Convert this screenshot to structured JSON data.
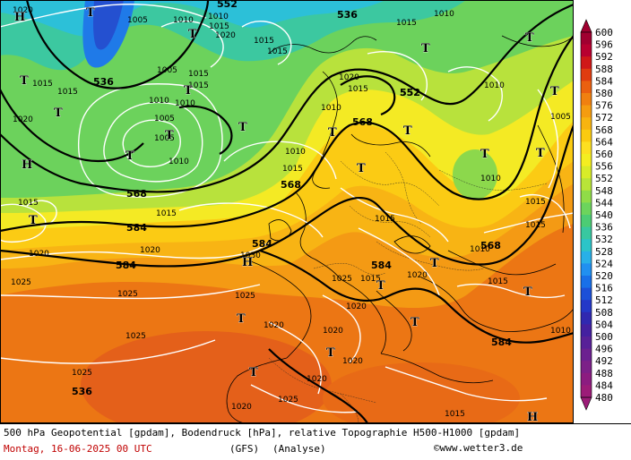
{
  "map": {
    "geopotential_labels": [
      "536",
      "552",
      "568",
      "584",
      "552",
      "536",
      "552",
      "568",
      "568",
      "584",
      "584",
      "568",
      "584",
      "584"
    ],
    "pressure_labels": [
      "1020",
      "1005",
      "1010",
      "1015",
      "1020",
      "1010",
      "1015",
      "1015",
      "1015",
      "1020",
      "1005",
      "1010",
      "1010",
      "1005",
      "1005",
      "1010",
      "1010",
      "1015",
      "1010",
      "1015",
      "1015",
      "1020",
      "1015",
      "1010",
      "1010",
      "1005",
      "1010",
      "1015",
      "1015",
      "1015",
      "1020",
      "1015",
      "1030",
      "1020",
      "1015",
      "1015",
      "1015",
      "1010",
      "1025",
      "1025",
      "1025",
      "1025",
      "1025",
      "1020",
      "1020",
      "1015",
      "1020",
      "1020",
      "1020",
      "1020",
      "1025",
      "1020",
      "1010",
      "1015",
      "1015",
      "1025"
    ],
    "low_symbol": "T",
    "high_symbol": "H"
  },
  "scale": {
    "values": [
      "600",
      "596",
      "592",
      "588",
      "584",
      "580",
      "576",
      "572",
      "568",
      "564",
      "560",
      "556",
      "552",
      "548",
      "544",
      "540",
      "536",
      "532",
      "528",
      "524",
      "520",
      "516",
      "512",
      "508",
      "504",
      "500",
      "496",
      "492",
      "488",
      "484",
      "480"
    ],
    "colors": [
      "#a00030",
      "#b80030",
      "#d01818",
      "#e03c10",
      "#ea6010",
      "#f08010",
      "#f59c10",
      "#f8b410",
      "#fbcb10",
      "#fde020",
      "#f4ee20",
      "#d8ec28",
      "#b8e438",
      "#90dc48",
      "#6cd45c",
      "#4ccc74",
      "#38c8a0",
      "#2cc4c8",
      "#28b0e8",
      "#2090f0",
      "#1870e8",
      "#1c50d8",
      "#2438c8",
      "#3028b0",
      "#4420a0",
      "#582098",
      "#6c2090",
      "#7c2088",
      "#8c1c80",
      "#9c1c78"
    ]
  },
  "footer": {
    "description": "500 hPa Geopotential [gpdam], Bodendruck [hPa], relative Topographie H500-H1000 [gpdam]",
    "date": "Montag, 16-06-2025  00 UTC",
    "model": "(GFS)",
    "analysis": "(Analyse)",
    "site": "©www.wetter3.de"
  },
  "colors": {
    "sea_orange": "#f08010",
    "date_red": "#c00000"
  }
}
